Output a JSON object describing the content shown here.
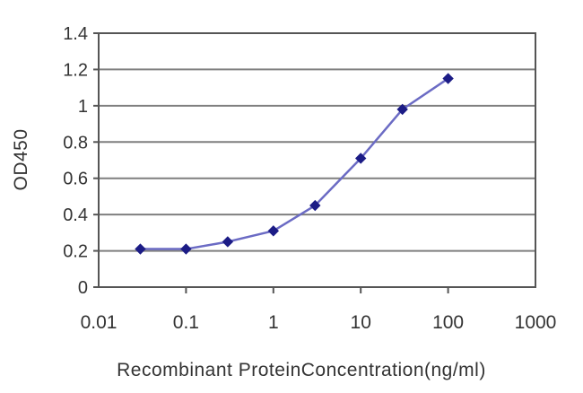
{
  "chart_data": {
    "type": "line",
    "title": "",
    "xlabel": "Recombinant ProteinConcentration(ng/ml)",
    "ylabel": "OD450",
    "x_scale": "log",
    "xlim": [
      0.01,
      1000
    ],
    "ylim": [
      0,
      1.4
    ],
    "x_ticks": [
      0.01,
      0.1,
      1,
      10,
      100,
      1000
    ],
    "x_tick_labels": [
      "0.01",
      "0.1",
      "1",
      "10",
      "100",
      "1000"
    ],
    "y_ticks": [
      0,
      0.2,
      0.4,
      0.6,
      0.8,
      1,
      1.2,
      1.4
    ],
    "y_tick_labels": [
      "0",
      "0.2",
      "0.4",
      "0.6",
      "0.8",
      "1",
      "1.2",
      "1.4"
    ],
    "grid": "horizontal",
    "legend": "none",
    "series": [
      {
        "name": "OD450",
        "x": [
          0.03,
          0.1,
          0.3,
          1,
          3,
          10,
          30,
          100
        ],
        "y": [
          0.21,
          0.21,
          0.25,
          0.31,
          0.45,
          0.71,
          0.98,
          1.15
        ],
        "marker": "diamond"
      }
    ],
    "colors": {
      "line": "#6b6bc4",
      "marker": "#1c1c86",
      "gridline": "#7f7f7f",
      "frame": "#555555",
      "text": "#333333",
      "background": "#ffffff"
    }
  }
}
